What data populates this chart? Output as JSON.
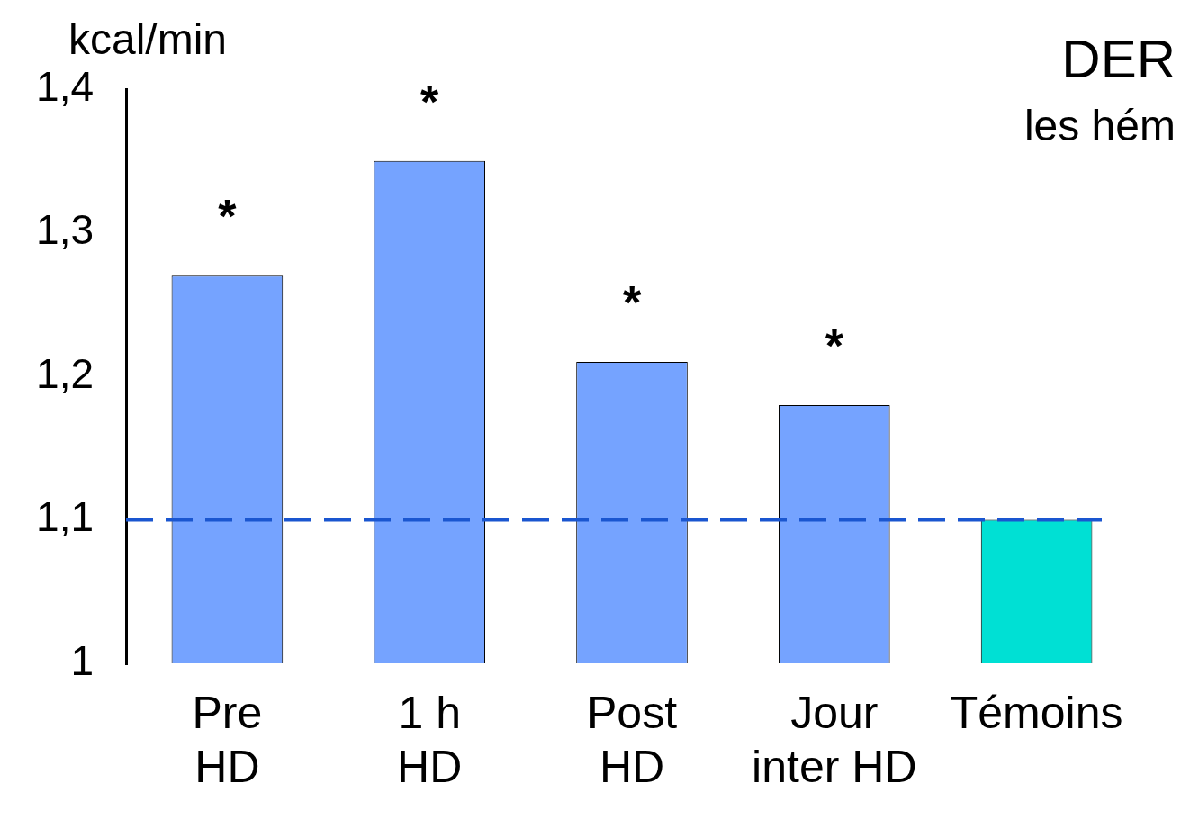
{
  "chart_data": {
    "type": "bar",
    "title": "DER",
    "subtitle": "les hém",
    "ylabel": "kcal/min",
    "categories": [
      "Pre\nHD",
      "1 h\nHD",
      "Post\nHD",
      "Jour\ninter HD",
      "Témoins"
    ],
    "values": [
      1.27,
      1.35,
      1.21,
      1.18,
      1.1
    ],
    "colors": [
      "#75a3ff",
      "#75a3ff",
      "#75a3ff",
      "#75a3ff",
      "#00e0d4"
    ],
    "ylim": [
      1,
      1.4
    ],
    "yticks": [
      {
        "value": 1,
        "label": "1"
      },
      {
        "value": 1.1,
        "label": "1,1"
      },
      {
        "value": 1.2,
        "label": "1,2"
      },
      {
        "value": 1.3,
        "label": "1,3"
      },
      {
        "value": 1.4,
        "label": "1,4"
      }
    ],
    "ref_lines": [
      {
        "axis": "y",
        "value": 1.1,
        "color": "#1a56d0",
        "line_style": "dashed"
      }
    ],
    "annotations": [
      {
        "text": "*",
        "x": "Pre\nHD",
        "y": 1.27
      },
      {
        "text": "*",
        "x": "1 h\nHD",
        "y": 1.35
      },
      {
        "text": "*",
        "x": "Post\nHD",
        "y": 1.21
      },
      {
        "text": "*",
        "x": "Jour\ninter HD",
        "y": 1.18
      }
    ],
    "grid": false,
    "legend": false
  }
}
